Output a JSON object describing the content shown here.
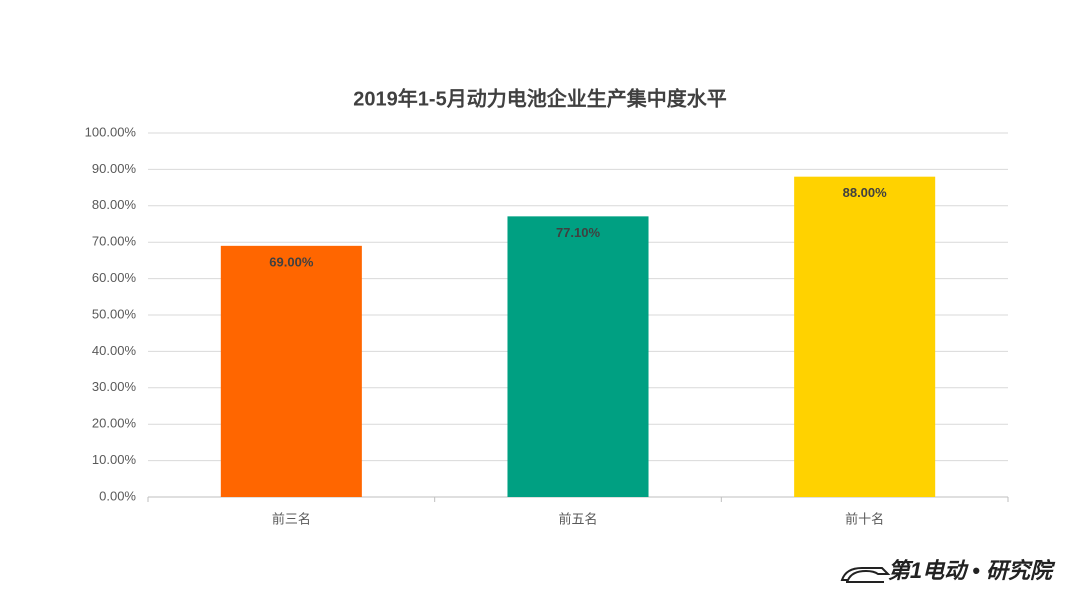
{
  "chart_data": {
    "type": "bar",
    "title": "2019年1-5月动力电池企业生产集中度水平",
    "categories": [
      "前三名",
      "前五名",
      "前十名"
    ],
    "values": [
      69,
      77.1,
      88
    ],
    "value_labels": [
      "69.00%",
      "77.10%",
      "88.00%"
    ],
    "colors": [
      "#ff6600",
      "#00a082",
      "#ffd200"
    ],
    "ylim": [
      0,
      100
    ],
    "yticks": [
      {
        "value": 0,
        "label": "0.00%"
      },
      {
        "value": 10,
        "label": "10.00%"
      },
      {
        "value": 20,
        "label": "20.00%"
      },
      {
        "value": 30,
        "label": "30.00%"
      },
      {
        "value": 40,
        "label": "40.00%"
      },
      {
        "value": 50,
        "label": "50.00%"
      },
      {
        "value": 60,
        "label": "60.00%"
      },
      {
        "value": 70,
        "label": "70.00%"
      },
      {
        "value": 80,
        "label": "80.00%"
      },
      {
        "value": 90,
        "label": "90.00%"
      },
      {
        "value": 100,
        "label": "100.00%"
      }
    ],
    "grid": true,
    "watermark": "第1电动 • 研究院"
  }
}
